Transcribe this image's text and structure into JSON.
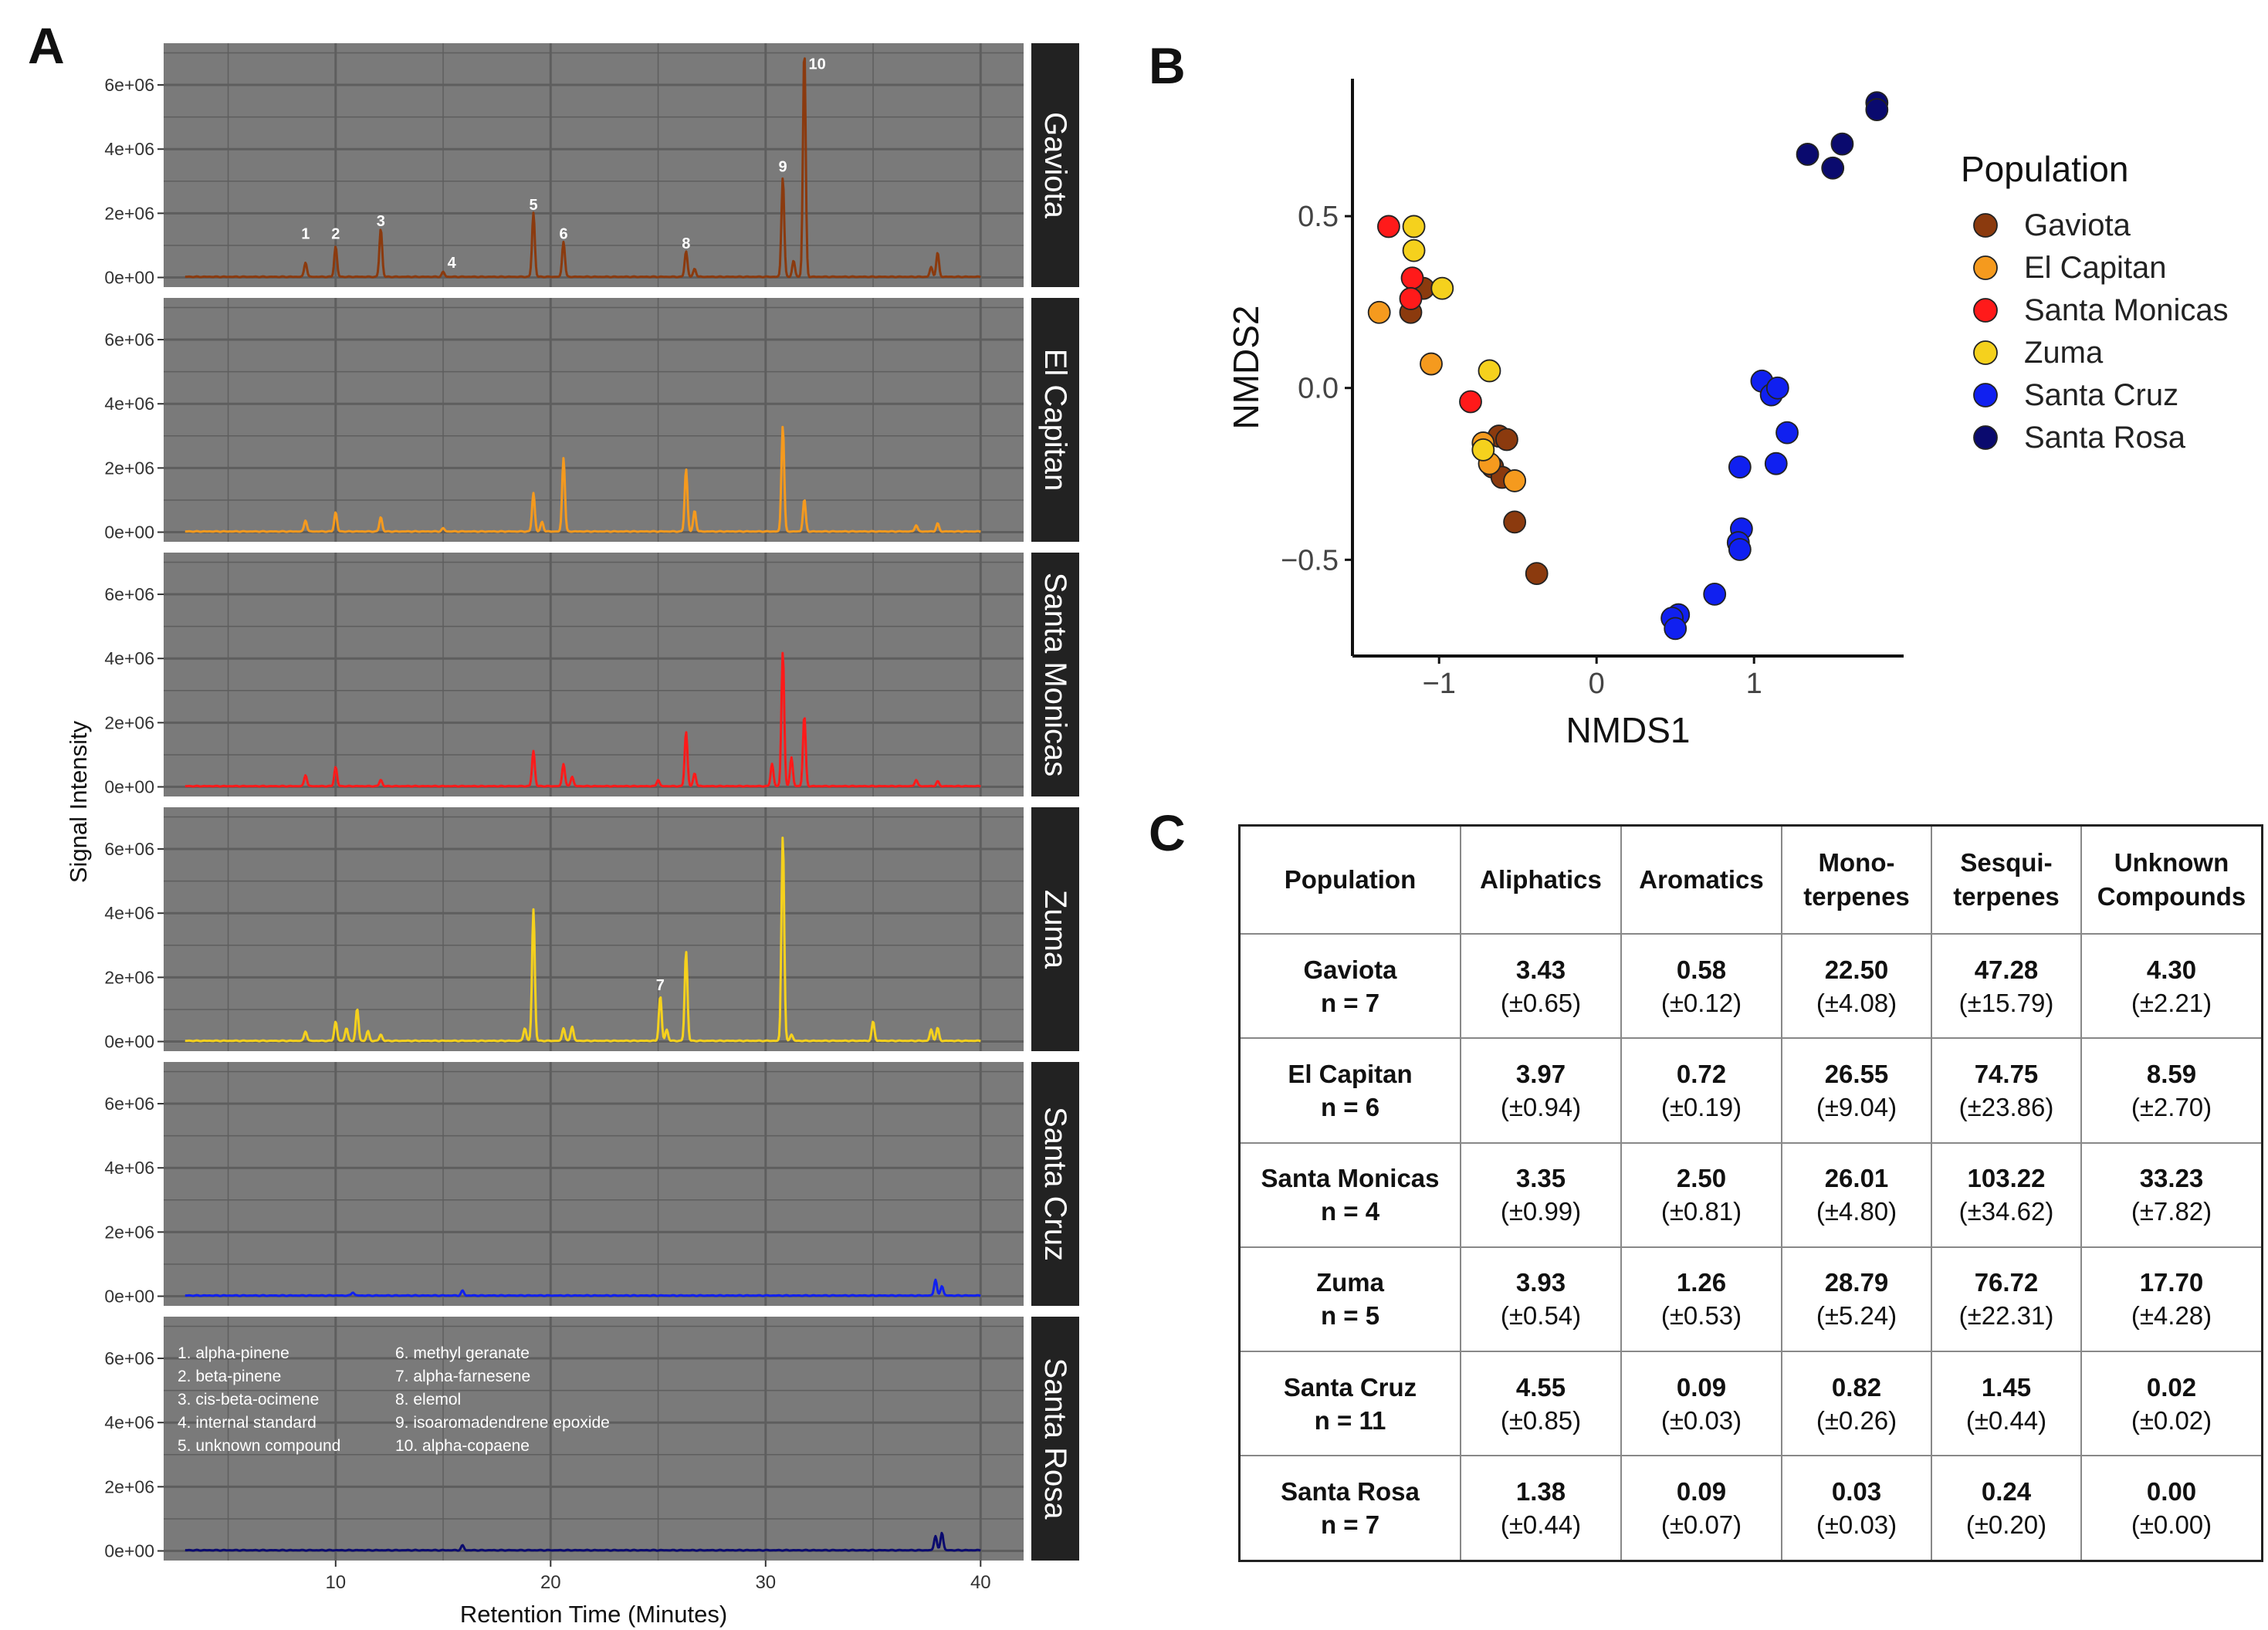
{
  "panel_labels": {
    "a": "A",
    "b": "B",
    "c": "C"
  },
  "colors": {
    "panel_bg": "#7a7a7a",
    "grid": "#5e5e5e",
    "strip_bg": "#222222",
    "Gaviota": "#8b3a0e",
    "El Capitan": "#f59a1e",
    "Santa Monicas": "#ff1a1a",
    "Zuma": "#f5d11d",
    "Santa Cruz": "#1020f0",
    "Santa Rosa": "#0a0a6e"
  },
  "chart_data": [
    {
      "type": "line",
      "panel": "A",
      "xlabel": "Retention Time (Minutes)",
      "ylabel": "Signal Intensity",
      "xlim": [
        2,
        42
      ],
      "ylim": [
        -300000,
        7300000
      ],
      "xticks": [
        10,
        20,
        30,
        40
      ],
      "xtick_labels": [
        "10",
        "20",
        "30",
        "40"
      ],
      "yticks": [
        0,
        2000000,
        4000000,
        6000000
      ],
      "ytick_labels": [
        "0e+00",
        "2e+06",
        "4e+06",
        "6e+06"
      ],
      "x_range": [
        3,
        40
      ],
      "facets": [
        {
          "name": "Gaviota",
          "color": "#8b3a0e",
          "peaks": [
            [
              8.6,
              450000
            ],
            [
              10,
              950000
            ],
            [
              12.1,
              1500000
            ],
            [
              15,
              150000
            ],
            [
              19.2,
              2000000
            ],
            [
              20.6,
              1100000
            ],
            [
              26.3,
              800000
            ],
            [
              26.7,
              250000
            ],
            [
              30.8,
              3100000
            ],
            [
              31.3,
              500000
            ],
            [
              31.8,
              7100000
            ],
            [
              37.7,
              300000
            ],
            [
              38,
              750000
            ]
          ],
          "annotations": [
            {
              "label": "1",
              "x": 8.6,
              "y": 1200000
            },
            {
              "label": "2",
              "x": 10,
              "y": 1200000
            },
            {
              "label": "3",
              "x": 12.1,
              "y": 1600000
            },
            {
              "label": "4",
              "x": 15.4,
              "y": 300000
            },
            {
              "label": "5",
              "x": 19.2,
              "y": 2100000
            },
            {
              "label": "6",
              "x": 20.6,
              "y": 1200000
            },
            {
              "label": "8",
              "x": 26.3,
              "y": 900000
            },
            {
              "label": "9",
              "x": 30.8,
              "y": 3300000
            },
            {
              "label": "10",
              "x": 32.4,
              "y": 6500000
            }
          ]
        },
        {
          "name": "El Capitan",
          "color": "#f59a1e",
          "peaks": [
            [
              8.6,
              350000
            ],
            [
              10,
              600000
            ],
            [
              12.1,
              450000
            ],
            [
              15,
              100000
            ],
            [
              19.2,
              1200000
            ],
            [
              19.6,
              300000
            ],
            [
              20.6,
              2300000
            ],
            [
              26.3,
              1950000
            ],
            [
              26.7,
              650000
            ],
            [
              30.8,
              3300000
            ],
            [
              31.8,
              1000000
            ],
            [
              37,
              200000
            ],
            [
              38,
              250000
            ]
          ],
          "annotations": []
        },
        {
          "name": "Santa Monicas",
          "color": "#ff1a1a",
          "peaks": [
            [
              8.6,
              350000
            ],
            [
              10,
              600000
            ],
            [
              12.1,
              200000
            ],
            [
              19.2,
              1100000
            ],
            [
              20.6,
              700000
            ],
            [
              21,
              300000
            ],
            [
              25,
              200000
            ],
            [
              26.3,
              1700000
            ],
            [
              26.7,
              400000
            ],
            [
              30.3,
              700000
            ],
            [
              30.8,
              4200000
            ],
            [
              31.2,
              900000
            ],
            [
              31.8,
              2200000
            ],
            [
              37,
              200000
            ],
            [
              38,
              150000
            ]
          ],
          "annotations": []
        },
        {
          "name": "Zuma",
          "color": "#f5d11d",
          "peaks": [
            [
              8.6,
              300000
            ],
            [
              10,
              600000
            ],
            [
              10.5,
              400000
            ],
            [
              11,
              1000000
            ],
            [
              11.5,
              300000
            ],
            [
              12.1,
              200000
            ],
            [
              18.8,
              400000
            ],
            [
              19.2,
              4100000
            ],
            [
              20.6,
              400000
            ],
            [
              21,
              450000
            ],
            [
              25.1,
              1400000
            ],
            [
              25.4,
              350000
            ],
            [
              26.3,
              2800000
            ],
            [
              30.8,
              6400000
            ],
            [
              31.2,
              200000
            ],
            [
              35,
              600000
            ],
            [
              37.7,
              350000
            ],
            [
              38,
              400000
            ]
          ],
          "annotations": [
            {
              "label": "7",
              "x": 25.1,
              "y": 1600000
            }
          ]
        },
        {
          "name": "Santa Cruz",
          "color": "#1020f0",
          "peaks": [
            [
              10.8,
              100000
            ],
            [
              15.9,
              150000
            ],
            [
              37.9,
              500000
            ],
            [
              38.2,
              300000
            ]
          ],
          "annotations": []
        },
        {
          "name": "Santa Rosa",
          "color": "#0a0a6e",
          "peaks": [
            [
              15.9,
              150000
            ],
            [
              37.9,
              450000
            ],
            [
              38.2,
              550000
            ]
          ],
          "annotations": []
        }
      ],
      "legend": {
        "placement": "top-left of last facet",
        "col1": [
          "1. alpha-pinene",
          "2. beta-pinene",
          "3. cis-beta-ocimene",
          "4. internal standard",
          "5. unknown compound"
        ],
        "col2": [
          "6. methyl geranate",
          "7. alpha-farnesene",
          "8. elemol",
          "9. isoaromadendrene epoxide",
          "10. alpha-copaene"
        ]
      }
    },
    {
      "type": "scatter",
      "panel": "B",
      "xlabel": "NMDS1",
      "ylabel": "NMDS2",
      "xlim": [
        -1.55,
        1.95
      ],
      "ylim": [
        -0.78,
        0.9
      ],
      "xticks": [
        -1,
        0,
        1
      ],
      "xtick_labels": [
        "−1",
        "0",
        "1"
      ],
      "yticks": [
        0.5,
        0.0,
        -0.5
      ],
      "ytick_labels": [
        "0.5",
        "0.0",
        "−0.5"
      ],
      "legend_title": "Population",
      "legend_placement": "right",
      "series": [
        {
          "name": "Gaviota",
          "points": [
            [
              -1.18,
              0.22
            ],
            [
              -1.1,
              0.29
            ],
            [
              -0.62,
              -0.14
            ],
            [
              -0.57,
              -0.15
            ],
            [
              -0.66,
              -0.23
            ],
            [
              -0.6,
              -0.26
            ],
            [
              -0.52,
              -0.39
            ],
            [
              -0.38,
              -0.54
            ]
          ]
        },
        {
          "name": "El Capitan",
          "points": [
            [
              -1.38,
              0.22
            ],
            [
              -1.05,
              0.07
            ],
            [
              -0.72,
              -0.16
            ],
            [
              -0.68,
              -0.22
            ],
            [
              -0.52,
              -0.27
            ]
          ]
        },
        {
          "name": "Santa Monicas",
          "points": [
            [
              -1.32,
              0.47
            ],
            [
              -1.17,
              0.32
            ],
            [
              -1.18,
              0.26
            ],
            [
              -0.8,
              -0.04
            ]
          ]
        },
        {
          "name": "Zuma",
          "points": [
            [
              -1.16,
              0.47
            ],
            [
              -1.16,
              0.4
            ],
            [
              -0.98,
              0.29
            ],
            [
              -0.68,
              0.05
            ],
            [
              -0.72,
              -0.18
            ]
          ]
        },
        {
          "name": "Santa Cruz",
          "points": [
            [
              1.05,
              0.02
            ],
            [
              1.11,
              -0.02
            ],
            [
              1.15,
              0.0
            ],
            [
              1.21,
              -0.13
            ],
            [
              1.14,
              -0.22
            ],
            [
              0.91,
              -0.23
            ],
            [
              0.92,
              -0.41
            ],
            [
              0.9,
              -0.45
            ],
            [
              0.91,
              -0.47
            ],
            [
              0.75,
              -0.6
            ],
            [
              0.52,
              -0.66
            ],
            [
              0.48,
              -0.67
            ],
            [
              0.5,
              -0.7
            ]
          ]
        },
        {
          "name": "Santa Rosa",
          "points": [
            [
              1.78,
              0.83
            ],
            [
              1.78,
              0.81
            ],
            [
              1.56,
              0.71
            ],
            [
              1.34,
              0.68
            ],
            [
              1.5,
              0.64
            ]
          ]
        }
      ]
    }
  ],
  "table": {
    "headers": [
      [
        "Population"
      ],
      [
        "Aliphatics"
      ],
      [
        "Aromatics"
      ],
      [
        "Mono-",
        "terpenes"
      ],
      [
        "Sesqui-",
        "terpenes"
      ],
      [
        "Unknown",
        "Compounds"
      ]
    ],
    "rows": [
      {
        "population": "Gaviota",
        "n": "n = 7",
        "cells": [
          [
            "3.43",
            "(±0.65)"
          ],
          [
            "0.58",
            "(±0.12)"
          ],
          [
            "22.50",
            "(±4.08)"
          ],
          [
            "47.28",
            "(±15.79)"
          ],
          [
            "4.30",
            "(±2.21)"
          ]
        ]
      },
      {
        "population": "El Capitan",
        "n": "n = 6",
        "cells": [
          [
            "3.97",
            "(±0.94)"
          ],
          [
            "0.72",
            "(±0.19)"
          ],
          [
            "26.55",
            "(±9.04)"
          ],
          [
            "74.75",
            "(±23.86)"
          ],
          [
            "8.59",
            "(±2.70)"
          ]
        ]
      },
      {
        "population": "Santa Monicas",
        "n": "n = 4",
        "cells": [
          [
            "3.35",
            "(±0.99)"
          ],
          [
            "2.50",
            "(±0.81)"
          ],
          [
            "26.01",
            "(±4.80)"
          ],
          [
            "103.22",
            "(±34.62)"
          ],
          [
            "33.23",
            "(±7.82)"
          ]
        ]
      },
      {
        "population": "Zuma",
        "n": "n = 5",
        "cells": [
          [
            "3.93",
            "(±0.54)"
          ],
          [
            "1.26",
            "(±0.53)"
          ],
          [
            "28.79",
            "(±5.24)"
          ],
          [
            "76.72",
            "(±22.31)"
          ],
          [
            "17.70",
            "(±4.28)"
          ]
        ]
      },
      {
        "population": "Santa Cruz",
        "n": "n = 11",
        "cells": [
          [
            "4.55",
            "(±0.85)"
          ],
          [
            "0.09",
            "(±0.03)"
          ],
          [
            "0.82",
            "(±0.26)"
          ],
          [
            "1.45",
            "(±0.44)"
          ],
          [
            "0.02",
            "(±0.02)"
          ]
        ]
      },
      {
        "population": "Santa Rosa",
        "n": "n = 7",
        "cells": [
          [
            "1.38",
            "(±0.44)"
          ],
          [
            "0.09",
            "(±0.07)"
          ],
          [
            "0.03",
            "(±0.03)"
          ],
          [
            "0.24",
            "(±0.20)"
          ],
          [
            "0.00",
            "(±0.00)"
          ]
        ]
      }
    ]
  }
}
